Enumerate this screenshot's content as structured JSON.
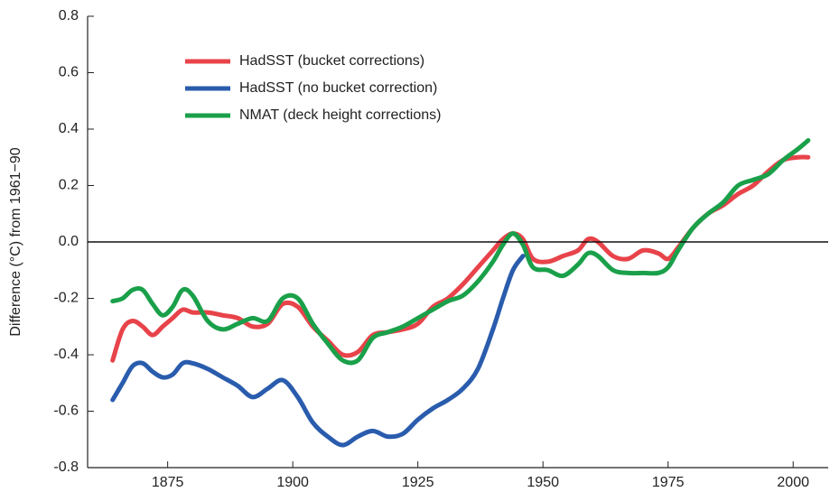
{
  "chart_data": {
    "type": "line",
    "y_label": "Difference (°C) from 1961−90",
    "x": [
      1864,
      1866,
      1868,
      1870,
      1872,
      1874,
      1876,
      1878,
      1880,
      1883,
      1886,
      1889,
      1892,
      1895,
      1898,
      1901,
      1904,
      1907,
      1910,
      1913,
      1916,
      1919,
      1922,
      1925,
      1928,
      1931,
      1934,
      1937,
      1940,
      1942,
      1944,
      1946,
      1948,
      1951,
      1954,
      1957,
      1959,
      1961,
      1964,
      1967,
      1970,
      1973,
      1975,
      1977,
      1980,
      1983,
      1986,
      1989,
      1992,
      1995,
      1998,
      2001,
      2003
    ],
    "series": [
      {
        "name": "HadSST (bucket corrections)",
        "color": "#e8434a",
        "values": [
          -0.42,
          -0.31,
          -0.28,
          -0.3,
          -0.33,
          -0.3,
          -0.27,
          -0.24,
          -0.25,
          -0.25,
          -0.26,
          -0.27,
          -0.3,
          -0.29,
          -0.22,
          -0.23,
          -0.3,
          -0.35,
          -0.4,
          -0.39,
          -0.33,
          -0.32,
          -0.31,
          -0.29,
          -0.23,
          -0.2,
          -0.15,
          -0.09,
          -0.03,
          0.01,
          0.03,
          0.01,
          -0.06,
          -0.07,
          -0.05,
          -0.03,
          0.01,
          0.0,
          -0.05,
          -0.06,
          -0.03,
          -0.04,
          -0.06,
          -0.02,
          0.05,
          0.1,
          0.13,
          0.17,
          0.2,
          0.25,
          0.29,
          0.3,
          0.3
        ]
      },
      {
        "name": "HadSST (no bucket correction)",
        "color": "#2a5cad",
        "values": [
          -0.56,
          -0.5,
          -0.44,
          -0.43,
          -0.46,
          -0.48,
          -0.47,
          -0.43,
          -0.43,
          -0.45,
          -0.48,
          -0.51,
          -0.55,
          -0.52,
          -0.49,
          -0.55,
          -0.64,
          -0.69,
          -0.72,
          -0.69,
          -0.67,
          -0.69,
          -0.68,
          -0.63,
          -0.59,
          -0.56,
          -0.52,
          -0.45,
          -0.31,
          -0.2,
          -0.1,
          -0.05,
          null,
          null,
          null,
          null,
          null,
          null,
          null,
          null,
          null,
          null,
          null,
          null,
          null,
          null,
          null,
          null,
          null,
          null,
          null,
          null,
          null
        ]
      },
      {
        "name": "NMAT (deck height corrections)",
        "color": "#1aa04a",
        "values": [
          -0.21,
          -0.2,
          -0.17,
          -0.17,
          -0.22,
          -0.26,
          -0.23,
          -0.17,
          -0.19,
          -0.28,
          -0.31,
          -0.29,
          -0.27,
          -0.28,
          -0.2,
          -0.2,
          -0.29,
          -0.36,
          -0.42,
          -0.42,
          -0.34,
          -0.32,
          -0.3,
          -0.27,
          -0.24,
          -0.21,
          -0.19,
          -0.14,
          -0.07,
          -0.01,
          0.03,
          -0.01,
          -0.09,
          -0.1,
          -0.12,
          -0.08,
          -0.04,
          -0.05,
          -0.1,
          -0.11,
          -0.11,
          -0.11,
          -0.09,
          -0.03,
          0.05,
          0.1,
          0.14,
          0.2,
          0.22,
          0.24,
          0.29,
          0.33,
          0.36
        ]
      }
    ],
    "xlim": [
      1859,
      2007
    ],
    "ylim": [
      -0.8,
      0.8
    ],
    "xticks": [
      1875,
      1900,
      1925,
      1950,
      1975,
      2000
    ],
    "yticks": [
      -0.8,
      -0.6,
      -0.4,
      -0.2,
      {
        "value": 0,
        "label": "0.0"
      },
      0.2,
      0.4,
      0.6,
      0.8
    ],
    "zero_line": true
  }
}
